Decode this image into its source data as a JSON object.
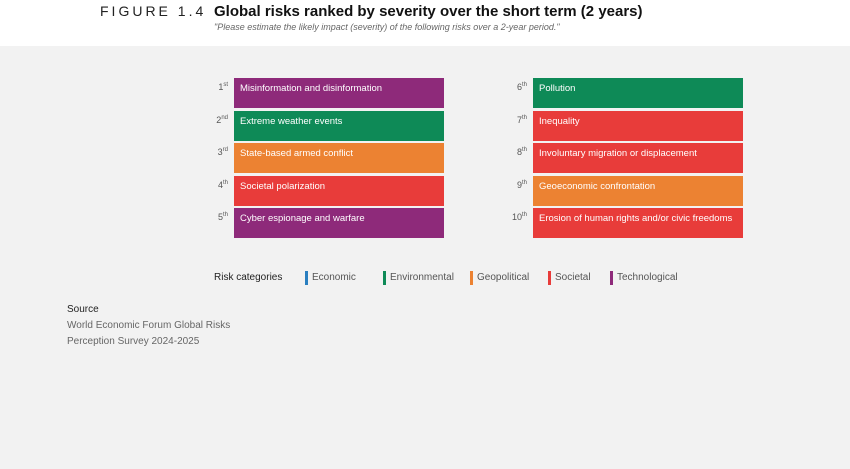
{
  "header": {
    "figure": "FIGURE 1.4",
    "title": "Global risks ranked by severity over the short term (2 years)",
    "subtitle": "\"Please estimate the likely impact (severity) of the following risks over a 2-year period.\""
  },
  "ranking": {
    "items": [
      {
        "rank": 1,
        "suffix": "st",
        "label": "Misinformation and disinformation",
        "category": "Technological"
      },
      {
        "rank": 2,
        "suffix": "nd",
        "label": "Extreme weather events",
        "category": "Environmental"
      },
      {
        "rank": 3,
        "suffix": "rd",
        "label": "State-based armed conflict",
        "category": "Geopolitical"
      },
      {
        "rank": 4,
        "suffix": "th",
        "label": "Societal polarization",
        "category": "Societal"
      },
      {
        "rank": 5,
        "suffix": "th",
        "label": "Cyber espionage and warfare",
        "category": "Technological"
      },
      {
        "rank": 6,
        "suffix": "th",
        "label": "Pollution",
        "category": "Environmental"
      },
      {
        "rank": 7,
        "suffix": "th",
        "label": "Inequality",
        "category": "Societal"
      },
      {
        "rank": 8,
        "suffix": "th",
        "label": "Involuntary migration or displacement",
        "category": "Societal"
      },
      {
        "rank": 9,
        "suffix": "th",
        "label": "Geoeconomic confrontation",
        "category": "Geopolitical"
      },
      {
        "rank": 10,
        "suffix": "th",
        "label": "Erosion of human rights and/or civic freedoms",
        "category": "Societal"
      }
    ]
  },
  "legend": {
    "title": "Risk categories",
    "categories": [
      {
        "name": "Economic",
        "color": "#2a7fc0"
      },
      {
        "name": "Environmental",
        "color": "#0e8a57"
      },
      {
        "name": "Geopolitical",
        "color": "#ec8232"
      },
      {
        "name": "Societal",
        "color": "#e83c3a"
      },
      {
        "name": "Technological",
        "color": "#8e2a7a"
      }
    ]
  },
  "source": {
    "title": "Source",
    "lines": [
      "World Economic Forum Global Risks",
      "Perception Survey 2024-2025"
    ]
  }
}
